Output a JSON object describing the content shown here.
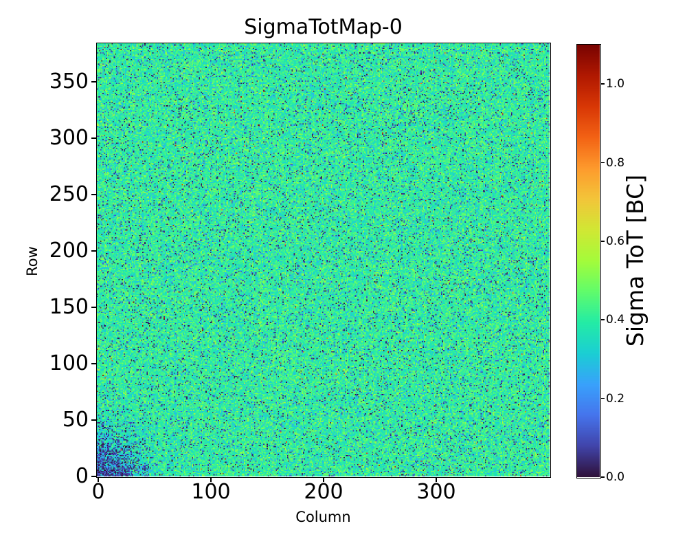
{
  "figure": {
    "title": "SigmaTotMap-0",
    "background_color": "#ffffff",
    "text_color": "#000000"
  },
  "axes": {
    "xlabel": "Column",
    "ylabel": "Row",
    "x_ticks": [
      0,
      100,
      200,
      300
    ],
    "y_ticks": [
      0,
      50,
      100,
      150,
      200,
      250,
      300,
      350
    ],
    "xlim": [
      0,
      400
    ],
    "ylim": [
      0,
      384
    ]
  },
  "colorbar": {
    "label": "Sigma ToT [BC]",
    "tick_labels": [
      "0.0",
      "0.2",
      "0.4",
      "0.6",
      "0.8",
      "1.0"
    ],
    "tick_values": [
      0.0,
      0.2,
      0.4,
      0.6,
      0.8,
      1.0
    ],
    "vmin": 0.0,
    "vmax": 1.1,
    "orientation": "vertical",
    "position": "right"
  },
  "chart_data": {
    "type": "heatmap",
    "title": "SigmaTotMap-0",
    "xlabel": "Column",
    "ylabel": "Row",
    "cols": 400,
    "rows": 384,
    "xlim": [
      0,
      400
    ],
    "ylim": [
      0,
      384
    ],
    "grid": false,
    "legend": false,
    "colormap": "turbo",
    "colormap_anchors": [
      "#30123b",
      "#4145ab",
      "#4675ed",
      "#39a2fc",
      "#1bcfd4",
      "#24eca6",
      "#61fc6c",
      "#a4fc3b",
      "#d1e834",
      "#f3c63a",
      "#fe9b2d",
      "#f36315",
      "#d93806",
      "#b11901",
      "#7a0402"
    ],
    "color_scale": {
      "vmin": 0.0,
      "vmax": 1.1,
      "label": "Sigma ToT [BC]"
    },
    "value_distribution": {
      "description": "Per-pixel sigma-ToT noise map: bulk of pixels ~0.3-0.5 BC (teal/cyan/green), scattered near-zero dark pixels, rare hot pixels >0.8 BC, and a dense cluster of near-zero (dark) pixels at the bottom-left origin.",
      "baseline_mean": 0.4,
      "baseline_sigma": 0.065,
      "baseline_clamp": [
        0.14,
        0.75
      ],
      "dark_pixel_fraction": 0.07,
      "dark_value_range": [
        0.0,
        0.13
      ],
      "hot_pixel_fraction": 0.0012,
      "hot_value_range": [
        0.8,
        1.1
      ],
      "low_sigma_cluster": {
        "center_col": 0,
        "center_row": 0,
        "gaussian_radius_cells": 22,
        "peak_dark_fraction": 0.8,
        "mean_suppression": 0.1,
        "mean_suppression_radius": 30,
        "approx_visible_radius_cells": 45
      },
      "random_seed": 42
    }
  }
}
